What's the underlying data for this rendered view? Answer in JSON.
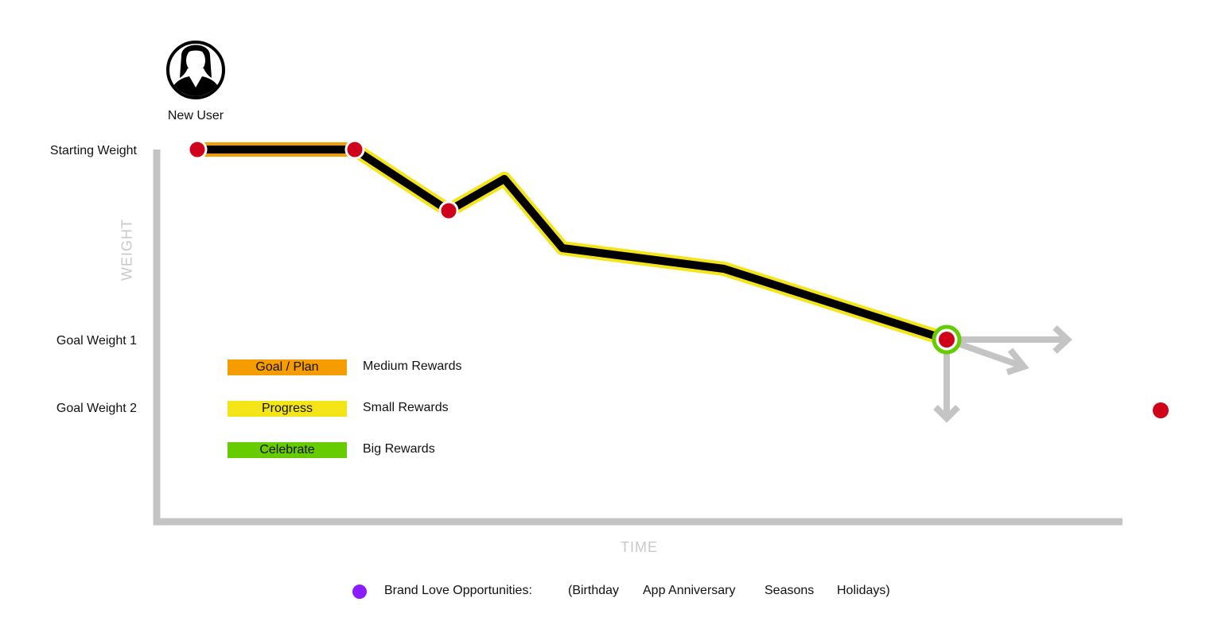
{
  "user": {
    "label": "New User",
    "icon": "woman-avatar-icon"
  },
  "y_labels": {
    "starting": "Starting Weight",
    "goal1": "Goal Weight 1",
    "goal2": "Goal Weight 2"
  },
  "axes": {
    "y_title": "WEIGHT",
    "x_title": "TIME"
  },
  "legend": [
    {
      "label": "Goal / Plan",
      "desc": "Medium Rewards",
      "color": "#f59c00"
    },
    {
      "label": "Progress",
      "desc": "Small Rewards",
      "color": "#f4e519"
    },
    {
      "label": "Celebrate",
      "desc": "Big Rewards",
      "color": "#66cc00"
    }
  ],
  "footer": {
    "title": "Brand Love Opportunities:",
    "items": [
      "(Birthday",
      "App Anniversary",
      "Seasons",
      "Holidays)"
    ],
    "dot_color": "#8a1cff"
  },
  "colors": {
    "milestone": "#d0021b",
    "axis": "#c4c4c4",
    "path": "#000000"
  }
}
